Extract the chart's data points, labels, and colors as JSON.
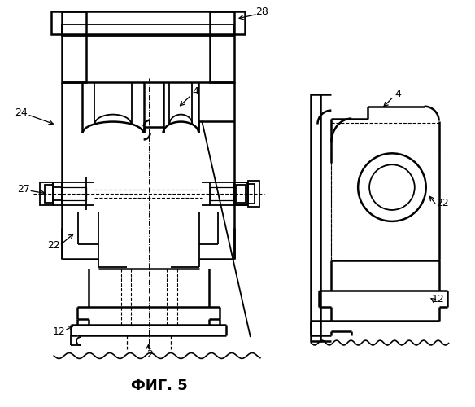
{
  "title": "ФИГ. 5",
  "title_fontsize": 13,
  "background_color": "#ffffff",
  "fig_width": 5.84,
  "fig_height": 5.0,
  "dpi": 100
}
